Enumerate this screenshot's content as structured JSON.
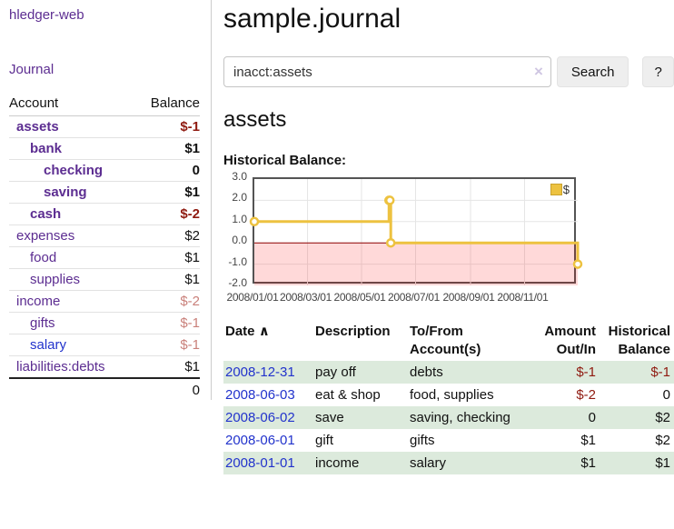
{
  "colors": {
    "purple": "#5c2d91",
    "blue": "#2233cc",
    "negative": "#8f1a10",
    "negative_muted": "#c9807a",
    "row_green": "#dceadc",
    "chart_line": "#EDC240",
    "chart_negative_fill": "rgba(255,0,0,0.15)",
    "zero_line": "#8b0000",
    "grid": "#e5e5e5"
  },
  "sidebar": {
    "brand": "hledger-web",
    "journal_link": "Journal",
    "account_header": "Account",
    "balance_header": "Balance",
    "rows": [
      {
        "name": "assets",
        "balance": "$-1",
        "depth": 1,
        "bold": true,
        "balance_style": "negative",
        "link_style": "purple"
      },
      {
        "name": "bank",
        "balance": "$1",
        "depth": 2,
        "bold": true,
        "balance_style": "normal",
        "link_style": "purple"
      },
      {
        "name": "checking",
        "balance": "0",
        "depth": 3,
        "bold": true,
        "balance_style": "normal",
        "link_style": "purple"
      },
      {
        "name": "saving",
        "balance": "$1",
        "depth": 3,
        "bold": true,
        "balance_style": "normal",
        "link_style": "purple"
      },
      {
        "name": "cash",
        "balance": "$-2",
        "depth": 2,
        "bold": true,
        "balance_style": "negative",
        "link_style": "purple"
      },
      {
        "name": "expenses",
        "balance": "$2",
        "depth": 1,
        "bold": false,
        "balance_style": "normal",
        "link_style": "purple"
      },
      {
        "name": "food",
        "balance": "$1",
        "depth": 2,
        "bold": false,
        "balance_style": "normal",
        "link_style": "purple"
      },
      {
        "name": "supplies",
        "balance": "$1",
        "depth": 2,
        "bold": false,
        "balance_style": "normal",
        "link_style": "purple"
      },
      {
        "name": "income",
        "balance": "$-2",
        "depth": 1,
        "bold": false,
        "balance_style": "negative_muted",
        "link_style": "purple"
      },
      {
        "name": "gifts",
        "balance": "$-1",
        "depth": 2,
        "bold": false,
        "balance_style": "negative_muted",
        "link_style": "purple"
      },
      {
        "name": "salary",
        "balance": "$-1",
        "depth": 2,
        "bold": false,
        "balance_style": "negative_muted",
        "link_style": "blue"
      },
      {
        "name": "liabilities:debts",
        "balance": "$1",
        "depth": 1,
        "bold": false,
        "balance_style": "normal",
        "link_style": "purple"
      }
    ],
    "total": "0"
  },
  "main": {
    "title": "sample.journal",
    "search": {
      "value": "inacct:assets",
      "clear_icon": "×",
      "search_button": "Search",
      "help_button": "?"
    },
    "account_heading": "assets",
    "chart_title": "Historical Balance:"
  },
  "chart_data": {
    "type": "line",
    "step": true,
    "title": "Historical Balance",
    "x_range": [
      "2008-01-01",
      "2008-12-31"
    ],
    "ylim": [
      -2,
      3
    ],
    "y_ticks": [
      {
        "label": "3.0",
        "value": 3
      },
      {
        "label": "2.0",
        "value": 2
      },
      {
        "label": "1.0",
        "value": 1
      },
      {
        "label": "0.0",
        "value": 0
      },
      {
        "label": "-1.0",
        "value": -1
      },
      {
        "label": "-2.0",
        "value": -2
      }
    ],
    "x_ticks": [
      {
        "label": "2008/01/01",
        "date": "2008-01-01"
      },
      {
        "label": "2008/03/01",
        "date": "2008-03-01"
      },
      {
        "label": "2008/05/01",
        "date": "2008-05-01"
      },
      {
        "label": "2008/07/01",
        "date": "2008-07-01"
      },
      {
        "label": "2008/09/01",
        "date": "2008-09-01"
      },
      {
        "label": "2008/11/01",
        "date": "2008-11-01"
      }
    ],
    "series": [
      {
        "name": "$",
        "color": "#EDC240",
        "points": [
          {
            "date": "2008-01-01",
            "value": 1
          },
          {
            "date": "2008-06-01",
            "value": 2
          },
          {
            "date": "2008-06-02",
            "value": 2
          },
          {
            "date": "2008-06-03",
            "value": 0
          },
          {
            "date": "2008-12-31",
            "value": -1
          }
        ]
      }
    ],
    "legend": {
      "label": "$",
      "position": "top-right"
    },
    "grid": true,
    "negative_region_shaded": true
  },
  "register": {
    "headers": {
      "date": "Date",
      "sort_indicator": "∧",
      "description": "Description",
      "accounts_line1": "To/From",
      "accounts_line2": "Account(s)",
      "amount_line1": "Amount",
      "amount_line2": "Out/In",
      "balance_line1": "Historical",
      "balance_line2": "Balance"
    },
    "rows": [
      {
        "date": "2008-12-31",
        "description": "pay off",
        "accounts": "debts",
        "amount": "$-1",
        "amount_negative": true,
        "balance": "$-1",
        "balance_negative": true,
        "shaded": true
      },
      {
        "date": "2008-06-03",
        "description": "eat & shop",
        "accounts": "food, supplies",
        "amount": "$-2",
        "amount_negative": true,
        "balance": "0",
        "balance_negative": false,
        "shaded": false
      },
      {
        "date": "2008-06-02",
        "description": "save",
        "accounts": "saving, checking",
        "amount": "0",
        "amount_negative": false,
        "balance": "$2",
        "balance_negative": false,
        "shaded": true
      },
      {
        "date": "2008-06-01",
        "description": "gift",
        "accounts": "gifts",
        "amount": "$1",
        "amount_negative": false,
        "balance": "$2",
        "balance_negative": false,
        "shaded": false
      },
      {
        "date": "2008-01-01",
        "description": "income",
        "accounts": "salary",
        "amount": "$1",
        "amount_negative": false,
        "balance": "$1",
        "balance_negative": false,
        "shaded": true
      }
    ]
  }
}
